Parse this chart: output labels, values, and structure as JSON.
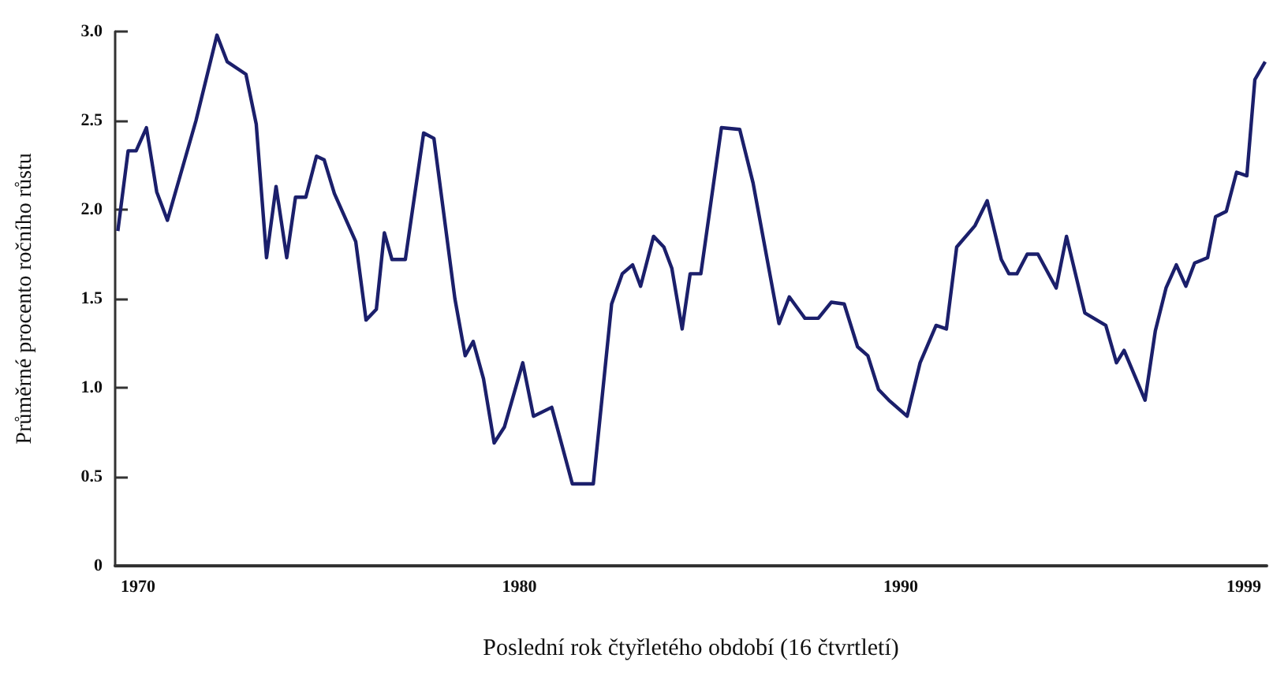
{
  "chart_data": {
    "type": "line",
    "xlabel": "Poslední rok čtyřletého období (16 čtvrtletí)",
    "ylabel": "Průměrné procento ročního růstu",
    "xlim": [
      1969.4,
      1999.6
    ],
    "xticks": [
      1970,
      1980,
      1990,
      1999
    ],
    "ylim": [
      0,
      3
    ],
    "yticks": [
      0,
      {
        "value": 0.5,
        "label": "0.5"
      },
      {
        "value": 1,
        "label": "1.0"
      },
      {
        "value": 1.5,
        "label": "1.5"
      },
      {
        "value": 2,
        "label": "2.0"
      },
      {
        "value": 2.5,
        "label": "2.5"
      },
      {
        "value": 3,
        "label": "3.0"
      }
    ],
    "grid": false,
    "marker": "none",
    "line_style": "solid",
    "series": [
      {
        "color": "#1b1f6b",
        "x": [
          1969.47,
          1969.74,
          1969.95,
          1970.22,
          1970.49,
          1970.77,
          1971.52,
          1972.07,
          1972.34,
          1972.83,
          1973.1,
          1973.37,
          1973.62,
          1973.9,
          1974.13,
          1974.4,
          1974.68,
          1974.88,
          1975.15,
          1975.71,
          1975.98,
          1976.25,
          1976.46,
          1976.66,
          1977.01,
          1977.49,
          1977.76,
          1978.31,
          1978.58,
          1978.79,
          1979.06,
          1979.34,
          1979.61,
          1980.09,
          1980.37,
          1980.85,
          1981.39,
          1981.94,
          1982.42,
          1982.7,
          1982.97,
          1983.18,
          1983.52,
          1983.79,
          1984.0,
          1984.27,
          1984.48,
          1984.76,
          1985.3,
          1985.78,
          1986.13,
          1986.81,
          1987.08,
          1987.49,
          1987.84,
          1988.18,
          1988.52,
          1988.87,
          1989.14,
          1989.42,
          1989.69,
          1990.17,
          1990.51,
          1990.93,
          1991.2,
          1991.47,
          1991.95,
          1992.27,
          1992.64,
          1992.84,
          1993.05,
          1993.32,
          1993.6,
          1994.08,
          1994.35,
          1994.83,
          1995.38,
          1995.66,
          1995.86,
          1996.41,
          1996.68,
          1996.96,
          1997.23,
          1997.48,
          1997.71,
          1998.05,
          1998.26,
          1998.54,
          1998.81,
          1999.08,
          1999.29,
          1999.56
        ],
        "values": [
          1.88,
          2.33,
          2.33,
          2.46,
          2.1,
          1.94,
          2.5,
          2.98,
          2.83,
          2.76,
          2.48,
          1.73,
          2.13,
          1.73,
          2.07,
          2.07,
          2.3,
          2.28,
          2.09,
          1.82,
          1.38,
          1.44,
          1.87,
          1.72,
          1.72,
          2.43,
          2.4,
          1.5,
          1.18,
          1.26,
          1.05,
          0.69,
          0.78,
          1.14,
          0.84,
          0.89,
          0.46,
          0.46,
          1.47,
          1.64,
          1.69,
          1.57,
          1.85,
          1.79,
          1.67,
          1.33,
          1.64,
          1.64,
          2.46,
          2.45,
          2.15,
          1.36,
          1.51,
          1.39,
          1.39,
          1.48,
          1.47,
          1.23,
          1.18,
          0.99,
          0.93,
          0.84,
          1.14,
          1.35,
          1.33,
          1.79,
          1.91,
          2.05,
          1.72,
          1.64,
          1.64,
          1.75,
          1.75,
          1.56,
          1.85,
          1.42,
          1.35,
          1.14,
          1.21,
          0.93,
          1.32,
          1.56,
          1.69,
          1.57,
          1.7,
          1.73,
          1.96,
          1.99,
          2.21,
          2.19,
          2.73,
          2.83
        ]
      }
    ]
  }
}
